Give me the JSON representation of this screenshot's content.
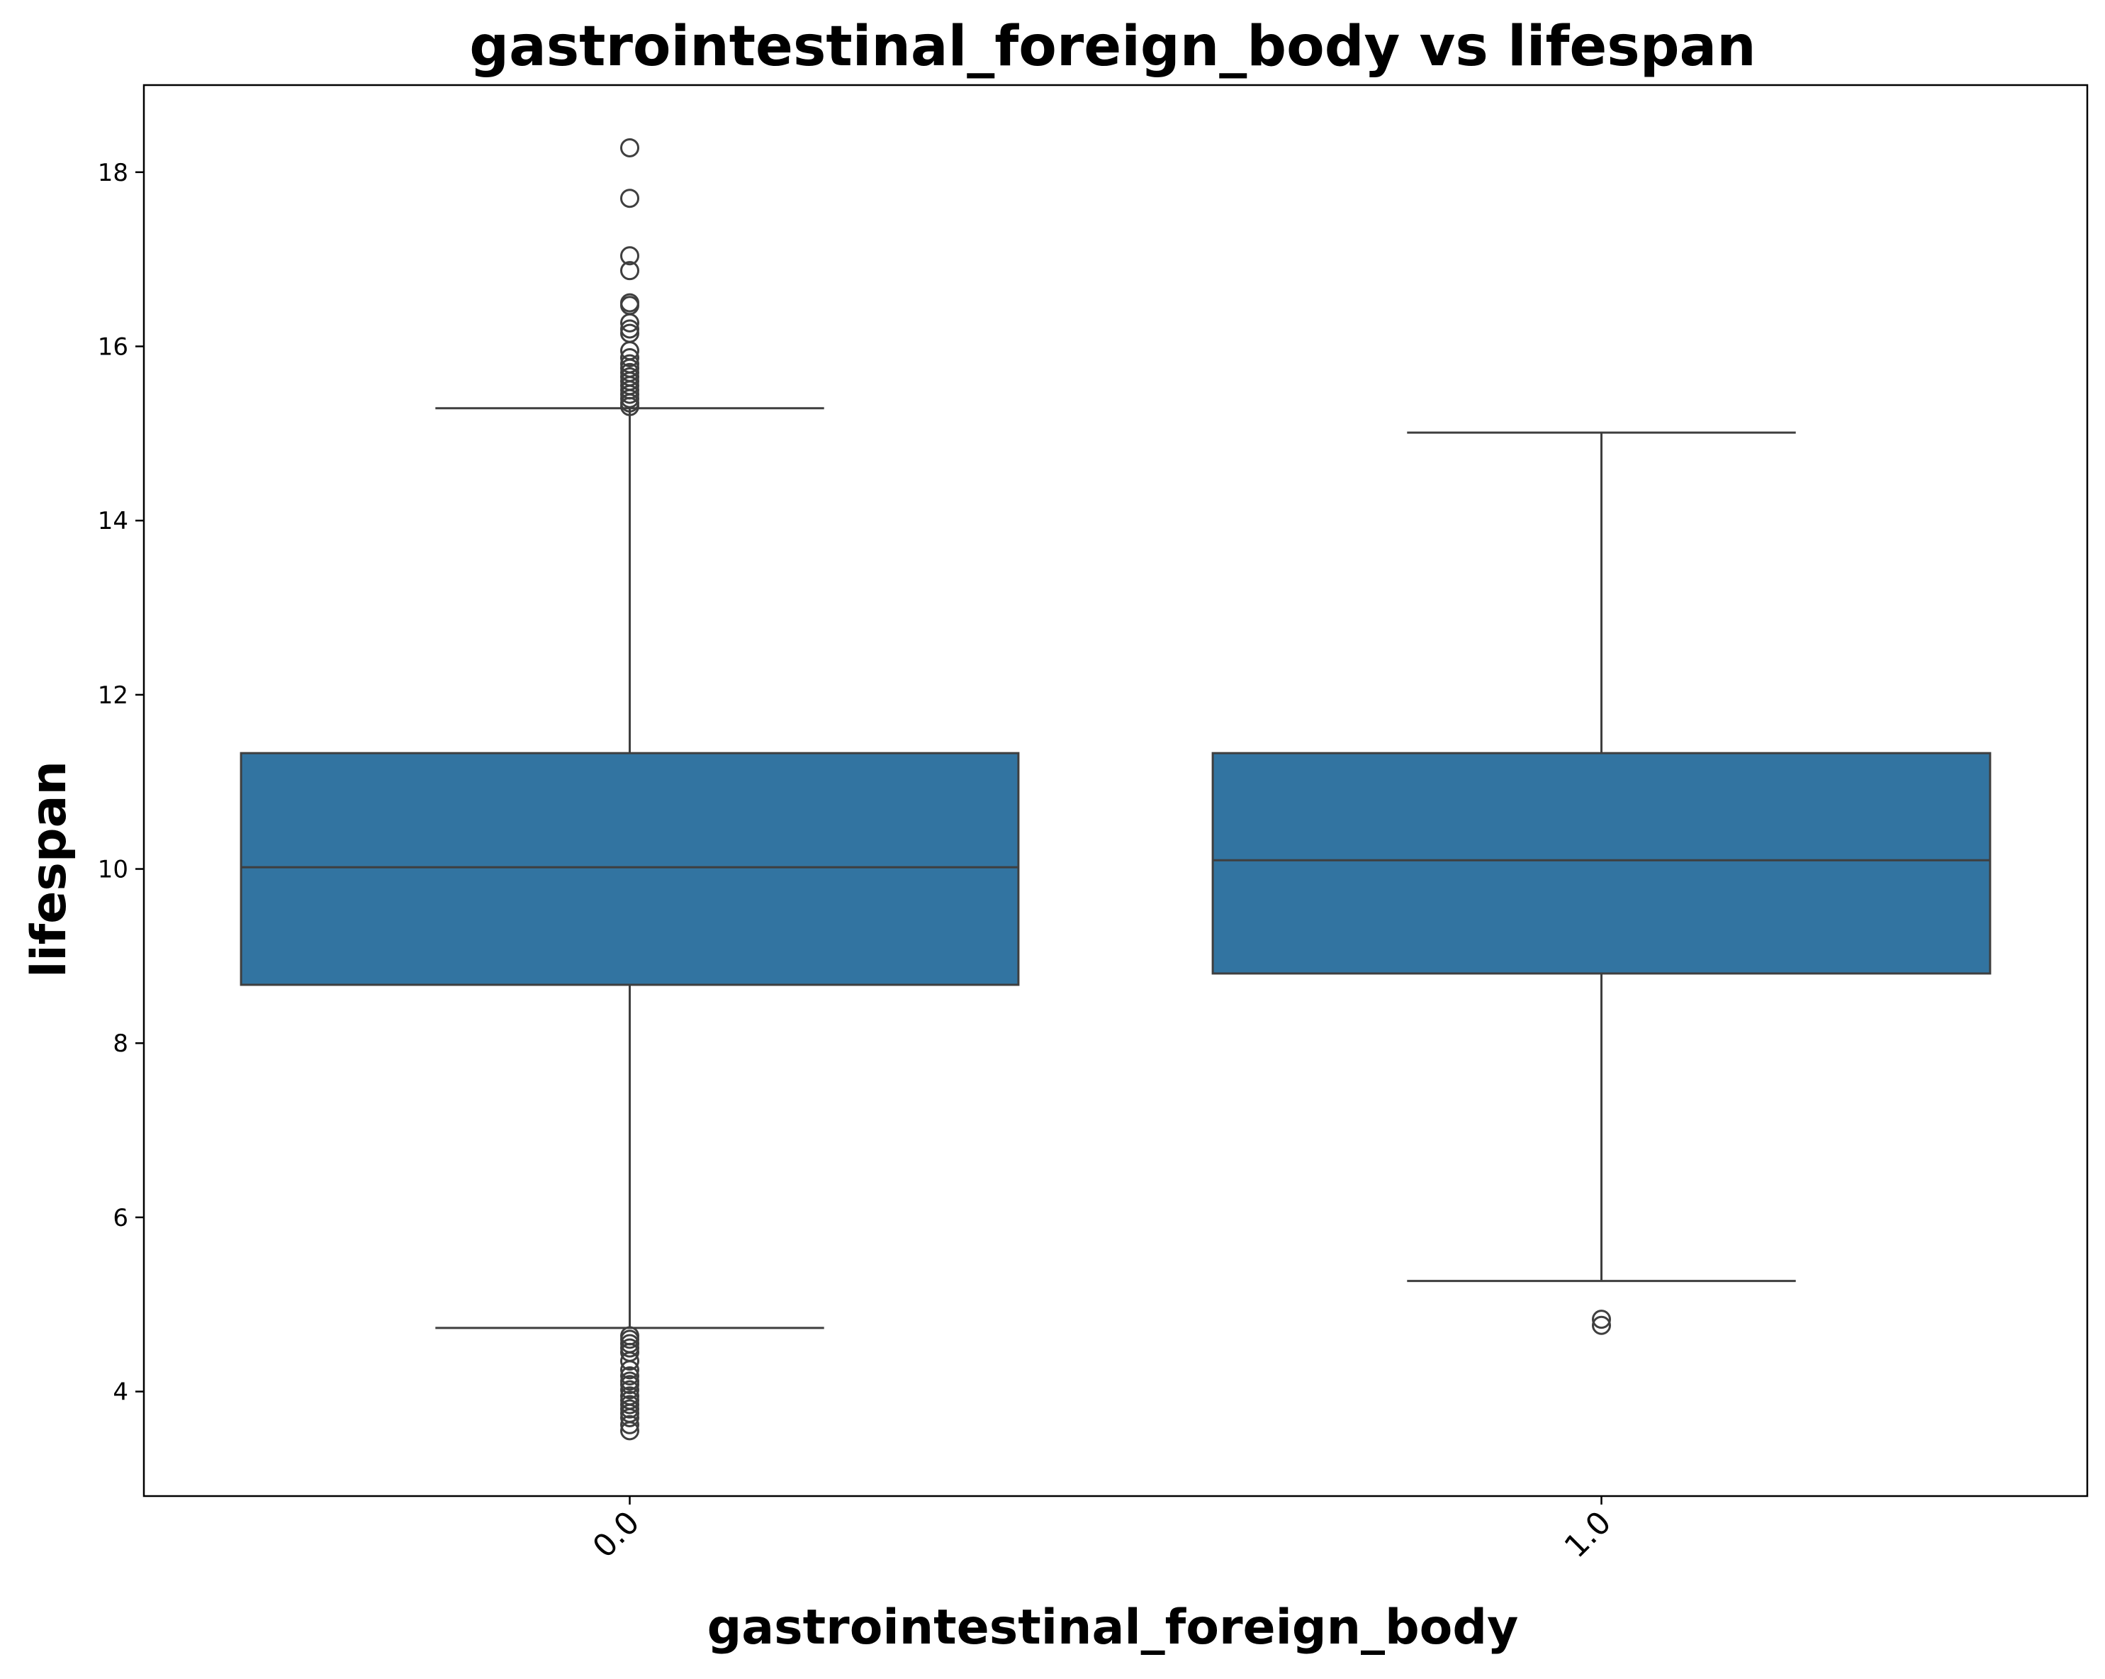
{
  "chart_data": {
    "type": "box",
    "title": "gastrointestinal_foreign_body vs lifespan",
    "xlabel": "gastrointestinal_foreign_body",
    "ylabel": "lifespan",
    "ylim": [
      2.8,
      19.0
    ],
    "yticks": [
      4,
      6,
      8,
      10,
      12,
      14,
      16,
      18
    ],
    "grid": false,
    "box_color": "#3274a1",
    "edge_color": "#3f3f3f",
    "categories": [
      "0.0",
      "1.0"
    ],
    "boxes": [
      {
        "category": "0.0",
        "whisker_low": 4.73,
        "q1": 8.67,
        "median": 10.02,
        "q3": 11.33,
        "whisker_high": 15.29,
        "outliers": [
          18.28,
          17.7,
          17.04,
          16.87,
          16.5,
          16.47,
          16.27,
          16.2,
          16.15,
          15.95,
          15.87,
          15.8,
          15.75,
          15.7,
          15.65,
          15.6,
          15.55,
          15.5,
          15.45,
          15.4,
          15.35,
          15.31,
          4.64,
          4.6,
          4.55,
          4.5,
          4.45,
          4.35,
          4.25,
          4.18,
          4.12,
          4.08,
          4.02,
          3.95,
          3.9,
          3.85,
          3.8,
          3.75,
          3.7,
          3.62,
          3.55
        ]
      },
      {
        "category": "1.0",
        "whisker_low": 5.27,
        "q1": 8.8,
        "median": 10.1,
        "q3": 11.33,
        "whisker_high": 15.01,
        "outliers": [
          4.83,
          4.76
        ]
      }
    ]
  }
}
